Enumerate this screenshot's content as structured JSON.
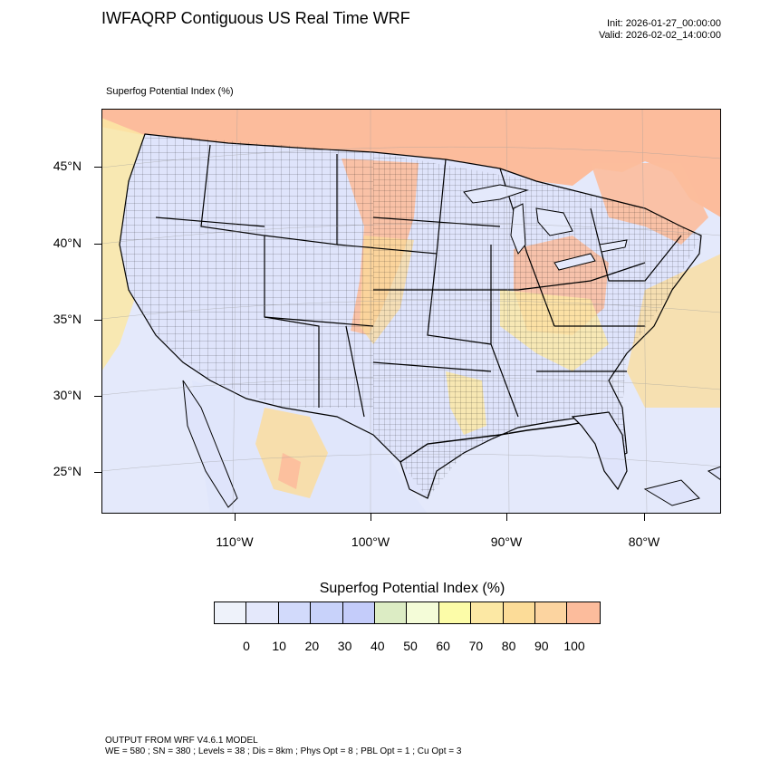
{
  "header": {
    "title": "IWFAQRP Contiguous US Real Time WRF",
    "init": "Init: 2026-01-27_00:00:00",
    "valid": "Valid: 2026-02-02_14:00:00"
  },
  "map": {
    "subtitle": "Superfog Potential Index   (%)",
    "lat_labels": [
      "45°N",
      "40°N",
      "35°N",
      "30°N",
      "25°N"
    ],
    "lon_labels": [
      "110°W",
      "100°W",
      "90°W",
      "80°W"
    ],
    "lat_values": [
      45,
      40,
      35,
      30,
      25
    ],
    "lon_values": [
      -110,
      -100,
      -90,
      -80
    ]
  },
  "colorbar": {
    "title": "Superfog Potential Index  (%)",
    "labels": [
      "0",
      "10",
      "20",
      "30",
      "40",
      "50",
      "60",
      "70",
      "80",
      "90",
      "100"
    ],
    "colors": [
      "#eef2fa",
      "#e4e8fb",
      "#d2dafb",
      "#c8d2fa",
      "#c4ccfa",
      "#dcecc4",
      "#f4fcd8",
      "#fcfca8",
      "#fce8a4",
      "#fcdc98",
      "#fcd4a0",
      "#fcbc9c"
    ]
  },
  "footer": {
    "line1": "OUTPUT FROM WRF V4.6.1 MODEL",
    "line2": "WE = 580 ; SN = 380 ; Levels = 38 ; Dis = 8km ; Phys Opt = 8 ; PBL Opt = 1 ; Cu Opt = 3"
  }
}
